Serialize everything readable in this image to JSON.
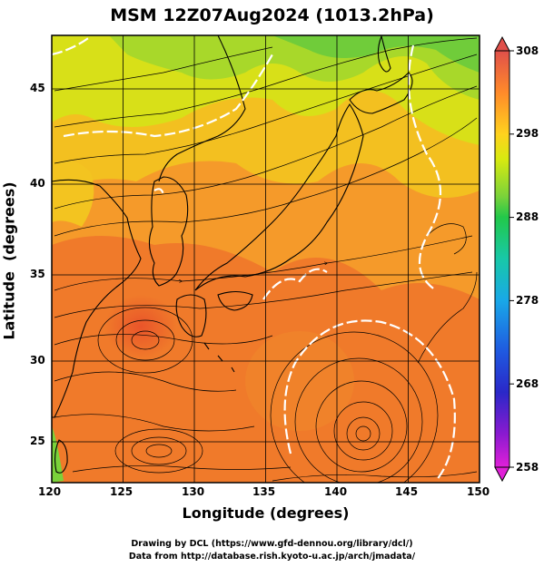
{
  "title": "MSM 12Z07Aug2024 (1013.2hPa)",
  "axes": {
    "xlabel": "Longitude (degrees)",
    "ylabel": "Latitude  (degrees)",
    "xticks": [
      "120",
      "125",
      "130",
      "135",
      "140",
      "145",
      "150"
    ],
    "yticks": [
      "45",
      "40",
      "35",
      "30",
      "25"
    ]
  },
  "colorbar": {
    "ticks": [
      "308",
      "298",
      "288",
      "278",
      "268",
      "258"
    ],
    "colors": [
      "#e0504a",
      "#ff8a2a",
      "#ffd21e",
      "#d8ea10",
      "#7ad23a",
      "#22c84a",
      "#18c8a8",
      "#19a8e8",
      "#1f5ae0",
      "#2a28c8",
      "#8a1ad0",
      "#e020d8"
    ]
  },
  "footer": {
    "line1": "Drawing by DCL (https://www.gfd-dennou.org/library/dcl/)",
    "line2": "Data from http://database.rish.kyoto-u.ac.jp/arch/jmadata/"
  },
  "chart_data": {
    "type": "heatmap",
    "title": "MSM 12Z07Aug2024 (1013.2hPa)",
    "xlabel": "Longitude (degrees)",
    "ylabel": "Latitude  (degrees)",
    "xlim": [
      120,
      150
    ],
    "ylim": [
      22.4,
      47.6
    ],
    "color_scale": {
      "min": 258,
      "max": 308,
      "ticks": [
        308,
        298,
        288,
        278,
        268,
        258
      ]
    },
    "grid": true,
    "fields": [
      "temperature (shaded)",
      "streamlines",
      "white contours"
    ],
    "approximate_field_values": [
      {
        "region": "southern ocean",
        "lat": 28,
        "lon": 135,
        "value": 303
      },
      {
        "region": "Korea / Yellow Sea",
        "lat": 38,
        "lon": 125,
        "value": 298
      },
      {
        "region": "northern Japan / Sea of Japan north",
        "lat": 44,
        "lon": 140,
        "value": 292
      },
      {
        "region": "northeast corner",
        "lat": 46,
        "lon": 148,
        "value": 290
      }
    ],
    "circulation_features": [
      {
        "type": "cyclone",
        "lon": 141.5,
        "lat": 25.5
      },
      {
        "type": "vortex",
        "lon": 126.5,
        "lat": 25.0
      },
      {
        "type": "vortex",
        "lon": 126.5,
        "lat": 31.0
      }
    ]
  }
}
